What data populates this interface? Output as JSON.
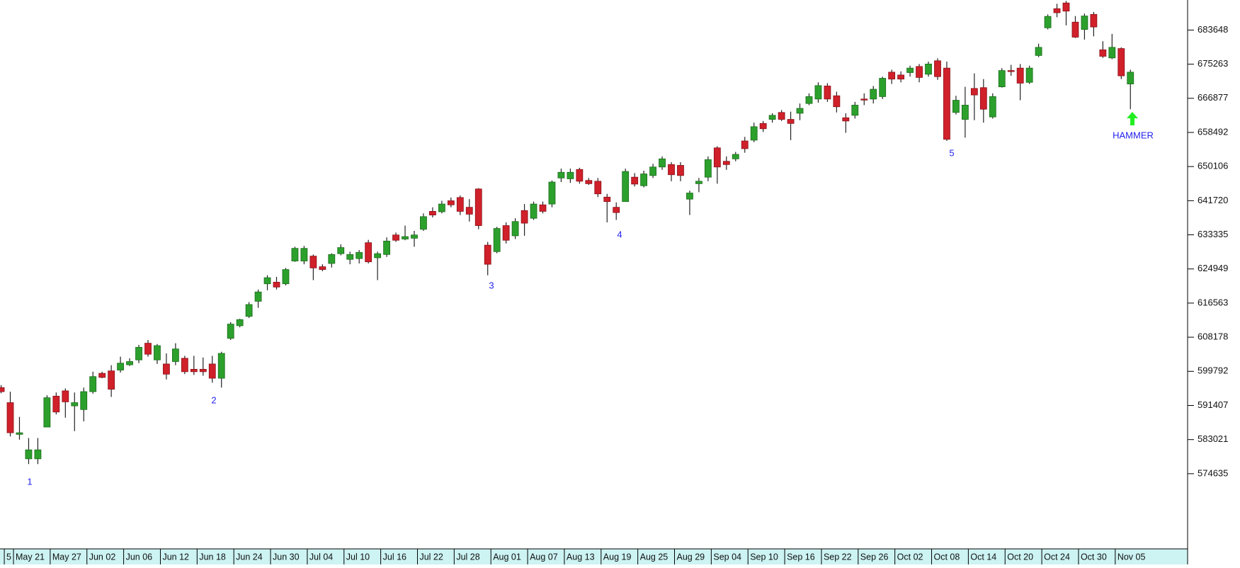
{
  "chart_data": {
    "type": "candlestick",
    "up_color": "#2ca02c",
    "down_color": "#d0202a",
    "ylim": [
      556167,
      691032
    ],
    "yticks": [
      574635,
      583021,
      591407,
      599792,
      608178,
      616563,
      624949,
      633335,
      641720,
      650106,
      658492,
      666877,
      675263,
      683648
    ],
    "annotations": [
      "1",
      "2",
      "3",
      "4",
      "5",
      "HAMMER"
    ],
    "categories": [
      "5",
      "May 21",
      null,
      null,
      null,
      "May 27",
      null,
      null,
      null,
      "Jun 02",
      null,
      null,
      null,
      "Jun 06",
      null,
      null,
      null,
      "Jun 12",
      null,
      null,
      null,
      "Jun 18",
      null,
      null,
      null,
      "Jun 24",
      null,
      null,
      null,
      "Jun 30",
      null,
      null,
      null,
      "Jul 04",
      null,
      null,
      null,
      "Jul 10",
      null,
      null,
      null,
      "Jul 16",
      null,
      null,
      null,
      "Jul 22",
      null,
      null,
      null,
      "Jul 28",
      null,
      null,
      null,
      "Aug 01",
      null,
      null,
      null,
      "Aug 07",
      null,
      null,
      null,
      "Aug 13",
      null,
      null,
      null,
      "Aug 19",
      null,
      null,
      null,
      "Aug 25",
      null,
      null,
      null,
      "Aug 29",
      null,
      null,
      null,
      "Sep 04",
      null,
      null,
      null,
      "Sep 10",
      null,
      null,
      null,
      "Sep 16",
      null,
      null,
      null,
      "Sep 22",
      null,
      null,
      null,
      "Sep 26",
      null,
      null,
      null,
      "Oct 02",
      null,
      null,
      null,
      "Oct 08",
      null,
      null,
      null,
      "Oct 14",
      null,
      null,
      null,
      "Oct 20",
      null,
      null,
      null,
      "Oct 24",
      null,
      null,
      null,
      "Oct 30",
      null,
      null,
      null,
      "Nov 05",
      null,
      null
    ],
    "open": [
      595800,
      592100,
      584300,
      578300,
      578300,
      586100,
      593700,
      595000,
      591300,
      590400,
      594800,
      599300,
      599900,
      600100,
      601400,
      602600,
      606700,
      602600,
      601600,
      602200,
      603000,
      600300,
      600300,
      601600,
      598100,
      607900,
      611000,
      613300,
      617000,
      621300,
      621700,
      621300,
      626900,
      626900,
      628100,
      625500,
      626300,
      628700,
      627300,
      627500,
      631400,
      627700,
      628500,
      633300,
      632300,
      632500,
      634700,
      639100,
      639000,
      641700,
      642500,
      640100,
      644600,
      630800,
      629200,
      635600,
      633100,
      639300,
      637400,
      640700,
      640900,
      647300,
      647100,
      649400,
      646700,
      646500,
      642600,
      640100,
      641500,
      647500,
      645400,
      647900,
      650000,
      650600,
      650400,
      642100,
      645900,
      647500,
      654700,
      651400,
      652000,
      656400,
      656600,
      660700,
      661700,
      663400,
      661700,
      663200,
      665600,
      666700,
      669900,
      667500,
      662100,
      662700,
      666700,
      666700,
      667300,
      673300,
      672600,
      673200,
      674700,
      672800,
      676100,
      674300,
      663400,
      661700,
      669300,
      669500,
      662300,
      669700,
      673700,
      674300,
      670800,
      677400,
      684200,
      688900,
      690300,
      685600,
      683800,
      687500,
      678800,
      676800,
      679100,
      670400
    ],
    "high": [
      596400,
      594800,
      588600,
      583400,
      583400,
      593900,
      594600,
      595600,
      594600,
      595800,
      599700,
      599700,
      601300,
      603400,
      603000,
      606300,
      607500,
      606500,
      604200,
      606700,
      603600,
      603600,
      603200,
      603600,
      604600,
      611900,
      612700,
      616800,
      619900,
      623400,
      623000,
      625200,
      630400,
      630600,
      628500,
      626100,
      628800,
      631000,
      629200,
      629600,
      632100,
      629200,
      632700,
      633900,
      635600,
      634300,
      638600,
      640100,
      641700,
      642500,
      643000,
      642100,
      644800,
      631600,
      635300,
      636400,
      637400,
      640900,
      641500,
      641500,
      646700,
      649600,
      649600,
      649800,
      647300,
      647300,
      643400,
      641300,
      649600,
      648500,
      649100,
      650800,
      652600,
      651200,
      651200,
      644200,
      647300,
      652600,
      655100,
      652600,
      653700,
      657400,
      660900,
      661300,
      663200,
      664000,
      663600,
      665600,
      668100,
      670800,
      670600,
      668500,
      663200,
      666000,
      668100,
      669900,
      672200,
      673900,
      673500,
      674900,
      675300,
      675900,
      676700,
      675900,
      667500,
      669700,
      673000,
      671600,
      668100,
      674300,
      675100,
      675300,
      674900,
      680300,
      687500,
      690100,
      690800,
      687100,
      687700,
      688100,
      680900,
      682700,
      679400,
      673900
    ],
    "low": [
      594400,
      583800,
      583000,
      577000,
      577000,
      586100,
      589200,
      588400,
      585100,
      587500,
      594300,
      598100,
      593500,
      599500,
      601100,
      601800,
      603400,
      601600,
      597800,
      601300,
      599100,
      598900,
      598700,
      597000,
      595800,
      607500,
      610600,
      612900,
      615400,
      619700,
      619900,
      620900,
      626700,
      626100,
      622200,
      624400,
      625300,
      628300,
      626100,
      626300,
      626300,
      622200,
      627900,
      631600,
      632000,
      630400,
      634300,
      637600,
      638600,
      640100,
      638200,
      636600,
      634700,
      623400,
      628800,
      631200,
      632300,
      633100,
      637000,
      638600,
      640100,
      646300,
      646100,
      645900,
      645600,
      642600,
      636400,
      637000,
      641500,
      645200,
      645000,
      647300,
      649300,
      646500,
      646500,
      638200,
      643800,
      646500,
      645900,
      649300,
      651400,
      653500,
      656100,
      658600,
      660900,
      661300,
      656600,
      661500,
      665200,
      665800,
      666000,
      663400,
      658400,
      661900,
      665200,
      665600,
      666700,
      670400,
      670800,
      672200,
      670800,
      672200,
      671400,
      656400,
      662900,
      657200,
      661500,
      660900,
      661900,
      669500,
      672400,
      666400,
      670400,
      677000,
      683800,
      686800,
      684800,
      681700,
      681300,
      682100,
      676800,
      676500,
      671600,
      664200
    ],
    "close": [
      594800,
      584700,
      584700,
      580500,
      580500,
      593300,
      589800,
      592300,
      592100,
      594800,
      598500,
      598300,
      595400,
      601800,
      602200,
      605700,
      604000,
      606100,
      599100,
      605300,
      599700,
      599700,
      599700,
      598100,
      604200,
      611400,
      612500,
      616200,
      619300,
      622800,
      620500,
      624800,
      630000,
      630000,
      625200,
      624800,
      628500,
      630200,
      628500,
      629000,
      626700,
      628700,
      631800,
      632000,
      632900,
      633300,
      637800,
      638200,
      640900,
      640700,
      639100,
      638400,
      635600,
      626100,
      634900,
      632000,
      636600,
      636200,
      640900,
      639100,
      646300,
      648700,
      648700,
      646500,
      645900,
      643400,
      641500,
      638800,
      648900,
      645800,
      648300,
      650000,
      652000,
      648100,
      647900,
      643600,
      646500,
      651800,
      650000,
      650600,
      653100,
      654500,
      659900,
      659400,
      662700,
      661700,
      660700,
      664400,
      667300,
      670000,
      666700,
      664800,
      661300,
      665200,
      666500,
      669100,
      671800,
      671600,
      671600,
      674300,
      672000,
      675300,
      672200,
      656800,
      666400,
      665200,
      667700,
      664200,
      667300,
      673700,
      673500,
      670600,
      674300,
      679400,
      687000,
      687900,
      688300,
      681900,
      687100,
      684400,
      677200,
      679400,
      672400,
      673300
    ]
  }
}
